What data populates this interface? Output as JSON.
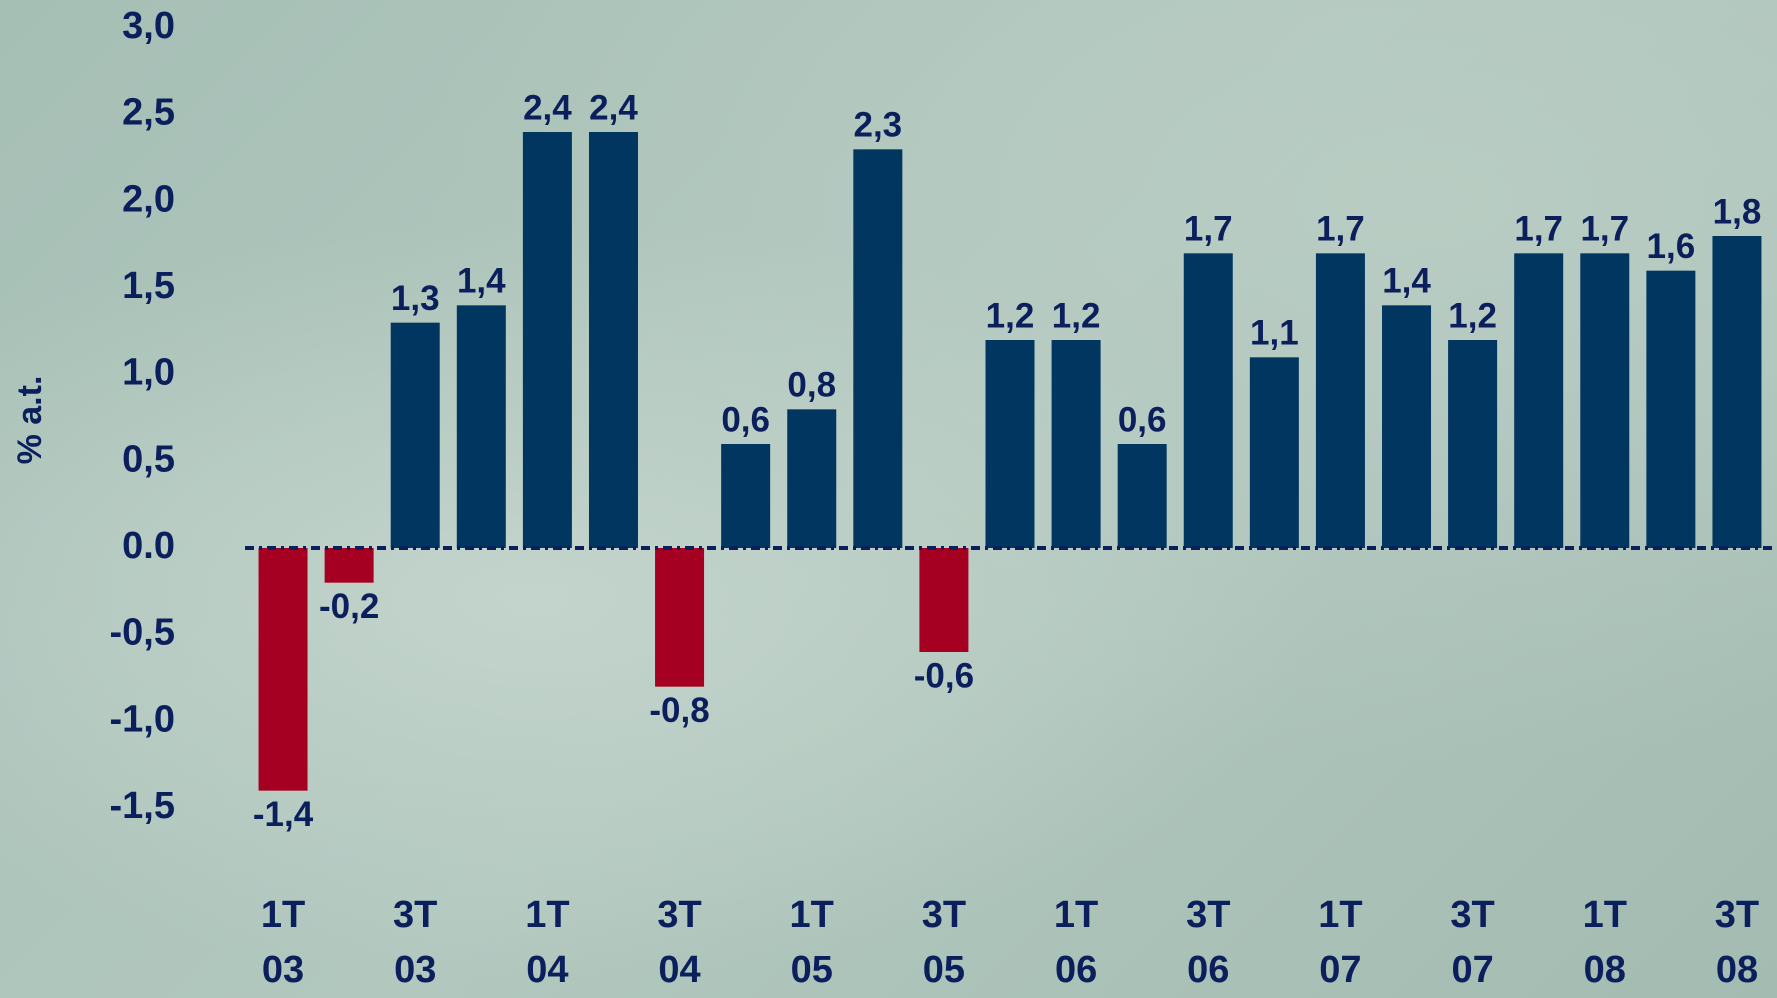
{
  "chart_data": {
    "type": "bar",
    "y_axis_label": "% a.t.",
    "categories": [
      "1T 03",
      null,
      "3T 03",
      null,
      "1T 04",
      null,
      "3T 04",
      null,
      "1T 05",
      null,
      "3T 05",
      null,
      "1T 06",
      null,
      "3T 06",
      null,
      "1T 07",
      null,
      "3T 07",
      null,
      "1T 08",
      null,
      "3T 08"
    ],
    "values": [
      -1.4,
      -0.2,
      1.3,
      1.4,
      2.4,
      2.4,
      -0.8,
      0.6,
      0.8,
      2.3,
      -0.6,
      1.2,
      1.2,
      0.6,
      1.7,
      1.1,
      1.7,
      1.4,
      1.2,
      1.7,
      1.7,
      1.6,
      1.8
    ],
    "value_labels": [
      "-1,4",
      "-0,2",
      "1,3",
      "1,4",
      "2,4",
      "2,4",
      "-0,8",
      "0,6",
      "0,8",
      "2,3",
      "-0,6",
      "1,2",
      "1,2",
      "0,6",
      "1,7",
      "1,1",
      "1,7",
      "1,4",
      "1,2",
      "1,7",
      "1,7",
      "1,6",
      "1,8"
    ],
    "positive_color": "#003660",
    "negative_color": "#a50021",
    "ylim": [
      -1.5,
      3.0
    ],
    "yticks": [
      {
        "value": 3.0,
        "label": "3,0"
      },
      {
        "value": 2.5,
        "label": "2,5"
      },
      {
        "value": 2.0,
        "label": "2,0"
      },
      {
        "value": 1.5,
        "label": "1,5"
      },
      {
        "value": 1.0,
        "label": "1,0"
      },
      {
        "value": 0.5,
        "label": "0,5"
      },
      {
        "value": 0.0,
        "label": "0.0"
      },
      {
        "value": -0.5,
        "label": "-0,5"
      },
      {
        "value": -1.0,
        "label": "-1,0"
      },
      {
        "value": -1.5,
        "label": "-1,5"
      }
    ],
    "zero_line": true
  }
}
